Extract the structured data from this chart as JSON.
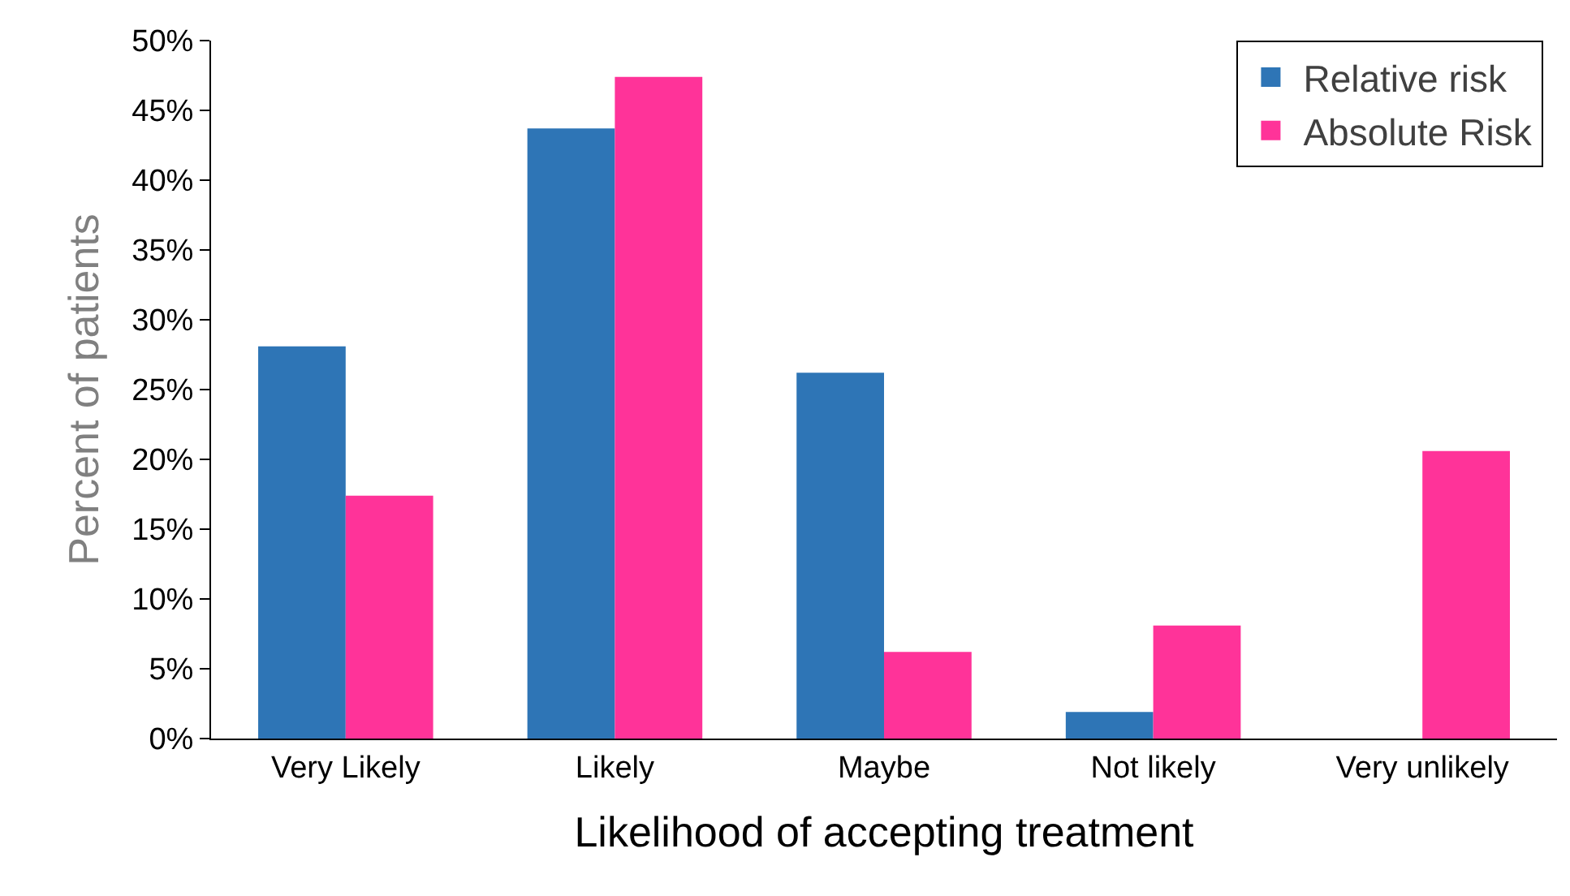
{
  "chart_data": {
    "type": "bar",
    "xlabel": "Likelihood of accepting treatment",
    "ylabel": "Percent of patients",
    "categories": [
      "Very Likely",
      "Likely",
      "Maybe",
      "Not likely",
      "Very unlikely"
    ],
    "series": [
      {
        "name": "Relative risk",
        "color": "#2e75b6",
        "values": [
          28.1,
          43.7,
          26.2,
          1.9,
          0
        ]
      },
      {
        "name": "Absolute Risk",
        "color": "#ff3399",
        "values": [
          17.4,
          47.4,
          6.2,
          8.1,
          20.6
        ]
      }
    ],
    "ylim": [
      0,
      50
    ],
    "yticks": [
      {
        "value": 0,
        "label": "0%"
      },
      {
        "value": 5,
        "label": "5%"
      },
      {
        "value": 10,
        "label": "10%"
      },
      {
        "value": 15,
        "label": "15%"
      },
      {
        "value": 20,
        "label": "20%"
      },
      {
        "value": 25,
        "label": "25%"
      },
      {
        "value": 30,
        "label": "30%"
      },
      {
        "value": 35,
        "label": "35%"
      },
      {
        "value": 40,
        "label": "40%"
      },
      {
        "value": 45,
        "label": "45%"
      },
      {
        "value": 50,
        "label": "50%"
      }
    ],
    "grid": false,
    "legend": "top right"
  }
}
